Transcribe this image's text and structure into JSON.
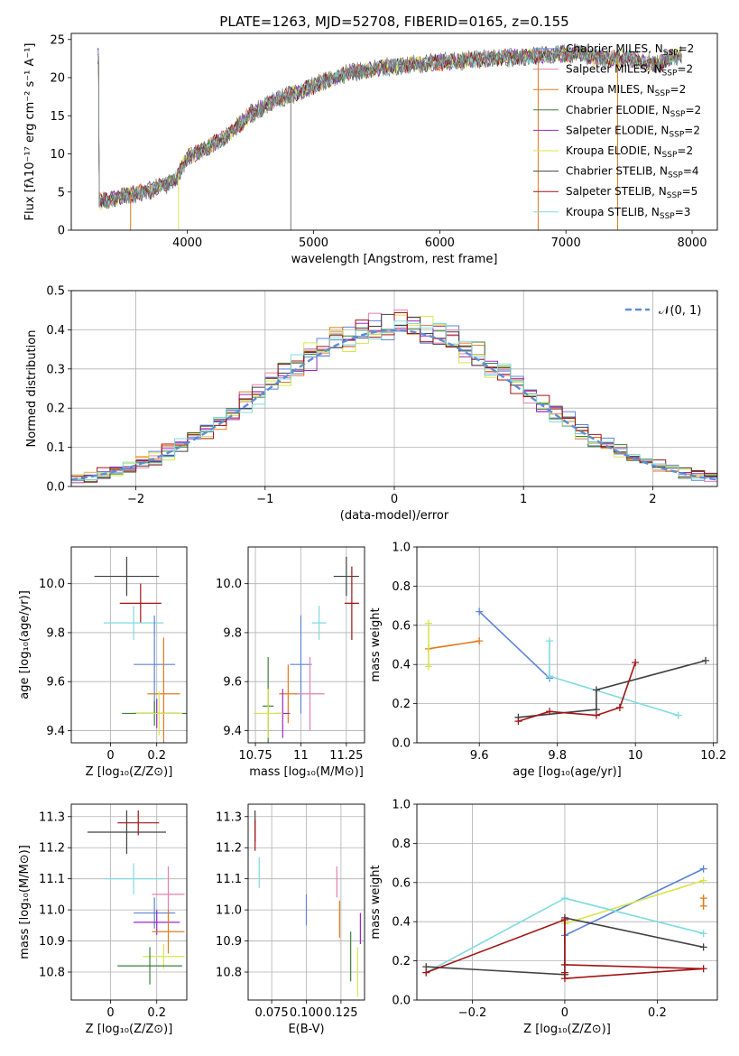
{
  "chart_data": [
    {
      "id": "spectrum",
      "type": "line",
      "title": "PLATE=1263, MJD=52708, FIBERID=0165, z=0.155",
      "xlabel": "wavelength [Angstrom, rest frame]",
      "ylabel": "Flux [fλ10⁻¹⁷ erg cm⁻² s⁻¹ A⁻¹]",
      "xlim": [
        3080,
        8200
      ],
      "ylim": [
        0,
        25.8
      ],
      "xticks": [
        4000,
        5000,
        6000,
        7000,
        8000
      ],
      "yticks": [
        0,
        5,
        10,
        15,
        20,
        25
      ],
      "legend_position": "right",
      "data_curve": {
        "x": [
          3300,
          3500,
          3700,
          3900,
          4000,
          4100,
          4300,
          4500,
          4700,
          4900,
          5100,
          5300,
          5500,
          5700,
          5900,
          6100,
          6300,
          6500,
          6700,
          6900,
          7100,
          7300,
          7500,
          7700,
          7900
        ],
        "y": [
          3.7,
          4.5,
          5.2,
          6.4,
          9.6,
          10.4,
          12.2,
          15.2,
          17.1,
          18.2,
          19.6,
          20.7,
          21.2,
          21.6,
          21.9,
          22.1,
          22.4,
          22.6,
          22.7,
          23.0,
          23.2,
          22.4,
          22.6,
          21.6,
          23.0
        ]
      },
      "series": [
        {
          "name": "Chabrier MILES, N_SSP=2",
          "color": "#5b84d8"
        },
        {
          "name": "Salpeter MILES, N_SSP=2",
          "color": "#e57fb0"
        },
        {
          "name": "Kroupa MILES, N_SSP=2",
          "color": "#e07b1a"
        },
        {
          "name": "Chabrier ELODIE, N_SSP=2",
          "color": "#3e7d3e"
        },
        {
          "name": "Salpeter ELODIE, N_SSP=2",
          "color": "#9b27c2"
        },
        {
          "name": "Kroupa ELODIE, N_SSP=2",
          "color": "#d7e64a"
        },
        {
          "name": "Chabrier STELIB, N_SSP=4",
          "color": "#404040"
        },
        {
          "name": "Salpeter STELIB, N_SSP=5",
          "color": "#a11414"
        },
        {
          "name": "Kroupa STELIB, N_SSP=3",
          "color": "#7fdbe0"
        }
      ]
    },
    {
      "id": "residuals",
      "type": "histogram",
      "xlabel": "(data-model)/error",
      "ylabel": "Normed distribution",
      "xlim": [
        -2.5,
        2.5
      ],
      "ylim": [
        0,
        0.5
      ],
      "xticks": [
        -2,
        -1,
        0,
        1,
        2
      ],
      "yticks": [
        0.0,
        0.1,
        0.2,
        0.3,
        0.4,
        0.5
      ],
      "grid": true,
      "legend": [
        {
          "name": "𝒩(0, 1)",
          "style": "dashed",
          "color": "#5b8fd6"
        }
      ],
      "legend_position": "top-right",
      "bin_width": 0.1
    },
    {
      "id": "age-vs-Z",
      "type": "errorbar",
      "xlabel": "Z [log₁₀(Z/Z⊙)]",
      "ylabel": "age  [log₁₀(age/yr)]",
      "xlim": [
        -0.17,
        0.33
      ],
      "ylim": [
        9.35,
        10.15
      ],
      "xticks": [
        0.0,
        0.2
      ],
      "yticks": [
        9.4,
        9.6,
        9.8,
        10.0
      ],
      "points": [
        {
          "series": "Chabrier STELIB",
          "x": 0.07,
          "xerr": 0.14,
          "y": 10.03,
          "yerr": 0.08
        },
        {
          "series": "Salpeter STELIB",
          "x": 0.13,
          "xerr": 0.09,
          "y": 9.92,
          "yerr": 0.08
        },
        {
          "series": "Kroupa STELIB",
          "x": 0.1,
          "xerr": 0.13,
          "y": 9.84,
          "yerr": 0.07
        },
        {
          "series": "Chabrier MILES",
          "x": 0.19,
          "xerr": 0.09,
          "y": 9.67,
          "yerr": 0.2
        },
        {
          "series": "Kroupa MILES",
          "x": 0.23,
          "xerr": 0.07,
          "y": 9.55,
          "yerr": 0.23
        },
        {
          "series": "Salpeter ELODIE",
          "x": 0.2,
          "xerr": 0.1,
          "y": 9.47,
          "yerr": 0.06
        },
        {
          "series": "Chabrier ELODIE",
          "x": 0.19,
          "xerr": 0.14,
          "y": 9.47,
          "yerr": 0.05
        },
        {
          "series": "Kroupa ELODIE",
          "x": 0.21,
          "xerr": 0.1,
          "y": 9.47,
          "yerr": 0.09
        }
      ]
    },
    {
      "id": "age-vs-mass",
      "type": "errorbar",
      "xlabel": "mass [log₁₀(M/M⊙)]",
      "ylabel": "",
      "xlim": [
        10.71,
        11.35
      ],
      "ylim": [
        9.35,
        10.15
      ],
      "xticks": [
        10.75,
        11.0,
        11.25
      ],
      "yticks": [
        9.4,
        9.6,
        9.8,
        10.0
      ],
      "points": [
        {
          "series": "Chabrier STELIB",
          "x": 11.25,
          "xerr": 0.07,
          "y": 10.03,
          "yerr": 0.08
        },
        {
          "series": "Salpeter STELIB",
          "x": 11.28,
          "xerr": 0.04,
          "y": 9.92,
          "yerr": 0.15
        },
        {
          "series": "Kroupa STELIB",
          "x": 11.1,
          "xerr": 0.04,
          "y": 9.84,
          "yerr": 0.07
        },
        {
          "series": "Chabrier MILES",
          "x": 11.0,
          "xerr": 0.06,
          "y": 9.67,
          "yerr": 0.2
        },
        {
          "series": "Salpeter MILES",
          "x": 11.05,
          "xerr": 0.08,
          "y": 9.55,
          "yerr": 0.15
        },
        {
          "series": "Kroupa MILES",
          "x": 10.93,
          "xerr": 0.05,
          "y": 9.55,
          "yerr": 0.12
        },
        {
          "series": "Salpeter ELODIE",
          "x": 10.9,
          "xerr": 0.04,
          "y": 9.47,
          "yerr": 0.1
        },
        {
          "series": "Chabrier ELODIE",
          "x": 10.82,
          "xerr": 0.03,
          "y": 9.5,
          "yerr": 0.2
        },
        {
          "series": "Kroupa ELODIE",
          "x": 10.82,
          "xerr": 0.08,
          "y": 9.47,
          "yerr": 0.1
        }
      ]
    },
    {
      "id": "mass-weight-vs-age",
      "type": "line",
      "xlabel": "age  [log₁₀(age/yr)]",
      "ylabel": "mass weight",
      "xlim": [
        9.44,
        10.21
      ],
      "ylim": [
        0,
        1.0
      ],
      "xticks": [
        9.6,
        9.8,
        10.0,
        10.2
      ],
      "yticks": [
        0.0,
        0.2,
        0.4,
        0.6,
        0.8,
        1.0
      ],
      "grid": true,
      "series": [
        {
          "name": "Chabrier MILES",
          "x": [
            9.6,
            9.78
          ],
          "y": [
            0.67,
            0.33
          ]
        },
        {
          "name": "Kroupa MILES",
          "x": [
            9.47,
            9.6
          ],
          "y": [
            0.48,
            0.52
          ]
        },
        {
          "name": "Kroupa ELODIE",
          "x": [
            9.47,
            9.47
          ],
          "y": [
            0.61,
            0.39
          ]
        },
        {
          "name": "Kroupa STELIB",
          "x": [
            9.78,
            9.78,
            10.11
          ],
          "y": [
            0.52,
            0.34,
            0.14
          ]
        },
        {
          "name": "Chabrier STELIB",
          "x": [
            9.7,
            9.9,
            9.9,
            10.18
          ],
          "y": [
            0.13,
            0.17,
            0.27,
            0.42
          ]
        },
        {
          "name": "Salpeter STELIB",
          "x": [
            9.7,
            9.78,
            9.9,
            9.96,
            10.0
          ],
          "y": [
            0.11,
            0.16,
            0.14,
            0.18,
            0.41
          ]
        }
      ]
    },
    {
      "id": "mass-vs-Z",
      "type": "errorbar",
      "xlabel": "Z [log₁₀(Z/Z⊙)]",
      "ylabel": "mass [log₁₀(M/M⊙)]",
      "xlim": [
        -0.17,
        0.33
      ],
      "ylim": [
        10.71,
        11.34
      ],
      "xticks": [
        0.0,
        0.2
      ],
      "yticks": [
        10.8,
        10.9,
        11.0,
        11.1,
        11.2,
        11.3
      ],
      "points": [
        {
          "series": "Chabrier STELIB",
          "x": 0.07,
          "xerr": 0.17,
          "y": 11.25,
          "yerr": 0.07
        },
        {
          "series": "Salpeter STELIB",
          "x": 0.12,
          "xerr": 0.09,
          "y": 11.28,
          "yerr": 0.04
        },
        {
          "series": "Kroupa STELIB",
          "x": 0.1,
          "xerr": 0.13,
          "y": 11.1,
          "yerr": 0.05
        },
        {
          "series": "Salpeter MILES",
          "x": 0.25,
          "xerr": 0.07,
          "y": 11.05,
          "yerr": 0.09
        },
        {
          "series": "Chabrier MILES",
          "x": 0.19,
          "xerr": 0.09,
          "y": 10.99,
          "yerr": 0.05
        },
        {
          "series": "Salpeter ELODIE",
          "x": 0.2,
          "xerr": 0.1,
          "y": 10.96,
          "yerr": 0.04
        },
        {
          "series": "Kroupa MILES",
          "x": 0.25,
          "xerr": 0.07,
          "y": 10.93,
          "yerr": 0.07
        },
        {
          "series": "Kroupa ELODIE",
          "x": 0.23,
          "xerr": 0.09,
          "y": 10.85,
          "yerr": 0.04
        },
        {
          "series": "Chabrier ELODIE",
          "x": 0.17,
          "xerr": 0.14,
          "y": 10.82,
          "yerr": 0.06
        }
      ]
    },
    {
      "id": "mass-vs-ebv",
      "type": "errorbar",
      "xlabel": "E(B-V)",
      "ylabel": "",
      "xlim": [
        0.058,
        0.142
      ],
      "ylim": [
        10.71,
        11.34
      ],
      "xticks": [
        0.075,
        0.1,
        0.125
      ],
      "xticklabels": [
        "0.075",
        "0.100",
        "0.125"
      ],
      "yticks": [
        10.8,
        10.9,
        11.0,
        11.1,
        11.2,
        11.3
      ],
      "points": [
        {
          "series": "Chabrier STELIB",
          "x": 0.063,
          "y": 11.27,
          "yerr": 0.05
        },
        {
          "series": "Salpeter STELIB",
          "x": 0.063,
          "y": 11.24,
          "yerr": 0.05
        },
        {
          "series": "Kroupa STELIB",
          "x": 0.066,
          "y": 11.12,
          "yerr": 0.05
        },
        {
          "series": "Chabrier MILES",
          "x": 0.1,
          "y": 11.0,
          "yerr": 0.05
        },
        {
          "series": "Salpeter MILES",
          "x": 0.122,
          "y": 11.09,
          "yerr": 0.05
        },
        {
          "series": "Kroupa MILES",
          "x": 0.124,
          "y": 10.97,
          "yerr": 0.06
        },
        {
          "series": "Chabrier ELODIE",
          "x": 0.132,
          "y": 10.85,
          "yerr": 0.08
        },
        {
          "series": "Salpeter ELODIE",
          "x": 0.139,
          "y": 10.94,
          "yerr": 0.05
        },
        {
          "series": "Kroupa ELODIE",
          "x": 0.137,
          "y": 10.8,
          "yerr": 0.08
        }
      ]
    },
    {
      "id": "mass-weight-vs-Z",
      "type": "line",
      "xlabel": "Z [log₁₀(Z/Z⊙)]",
      "ylabel": "mass weight",
      "xlim": [
        -0.32,
        0.33
      ],
      "ylim": [
        0,
        1.0
      ],
      "xticks": [
        -0.2,
        0.0,
        0.2
      ],
      "yticks": [
        0.0,
        0.2,
        0.4,
        0.6,
        0.8,
        1.0
      ],
      "grid": true,
      "series": [
        {
          "name": "Chabrier MILES",
          "x": [
            0.0,
            0.3
          ],
          "y": [
            0.33,
            0.67
          ]
        },
        {
          "name": "Kroupa ELODIE",
          "x": [
            0.0,
            0.3
          ],
          "y": [
            0.39,
            0.61
          ]
        },
        {
          "name": "Kroupa MILES",
          "x": [
            0.3,
            0.3
          ],
          "y": [
            0.48,
            0.52
          ]
        },
        {
          "name": "Kroupa STELIB",
          "x": [
            -0.3,
            0.0,
            0.3
          ],
          "y": [
            0.14,
            0.52,
            0.34
          ]
        },
        {
          "name": "Chabrier STELIB",
          "x": [
            -0.3,
            0.0,
            0.0,
            0.3
          ],
          "y": [
            0.17,
            0.13,
            0.42,
            0.27
          ]
        },
        {
          "name": "Salpeter STELIB",
          "x": [
            -0.3,
            0.0,
            0.0,
            0.3,
            0.0,
            0.0
          ],
          "y": [
            0.14,
            0.41,
            0.18,
            0.16,
            0.11,
            0.14
          ]
        }
      ]
    }
  ]
}
